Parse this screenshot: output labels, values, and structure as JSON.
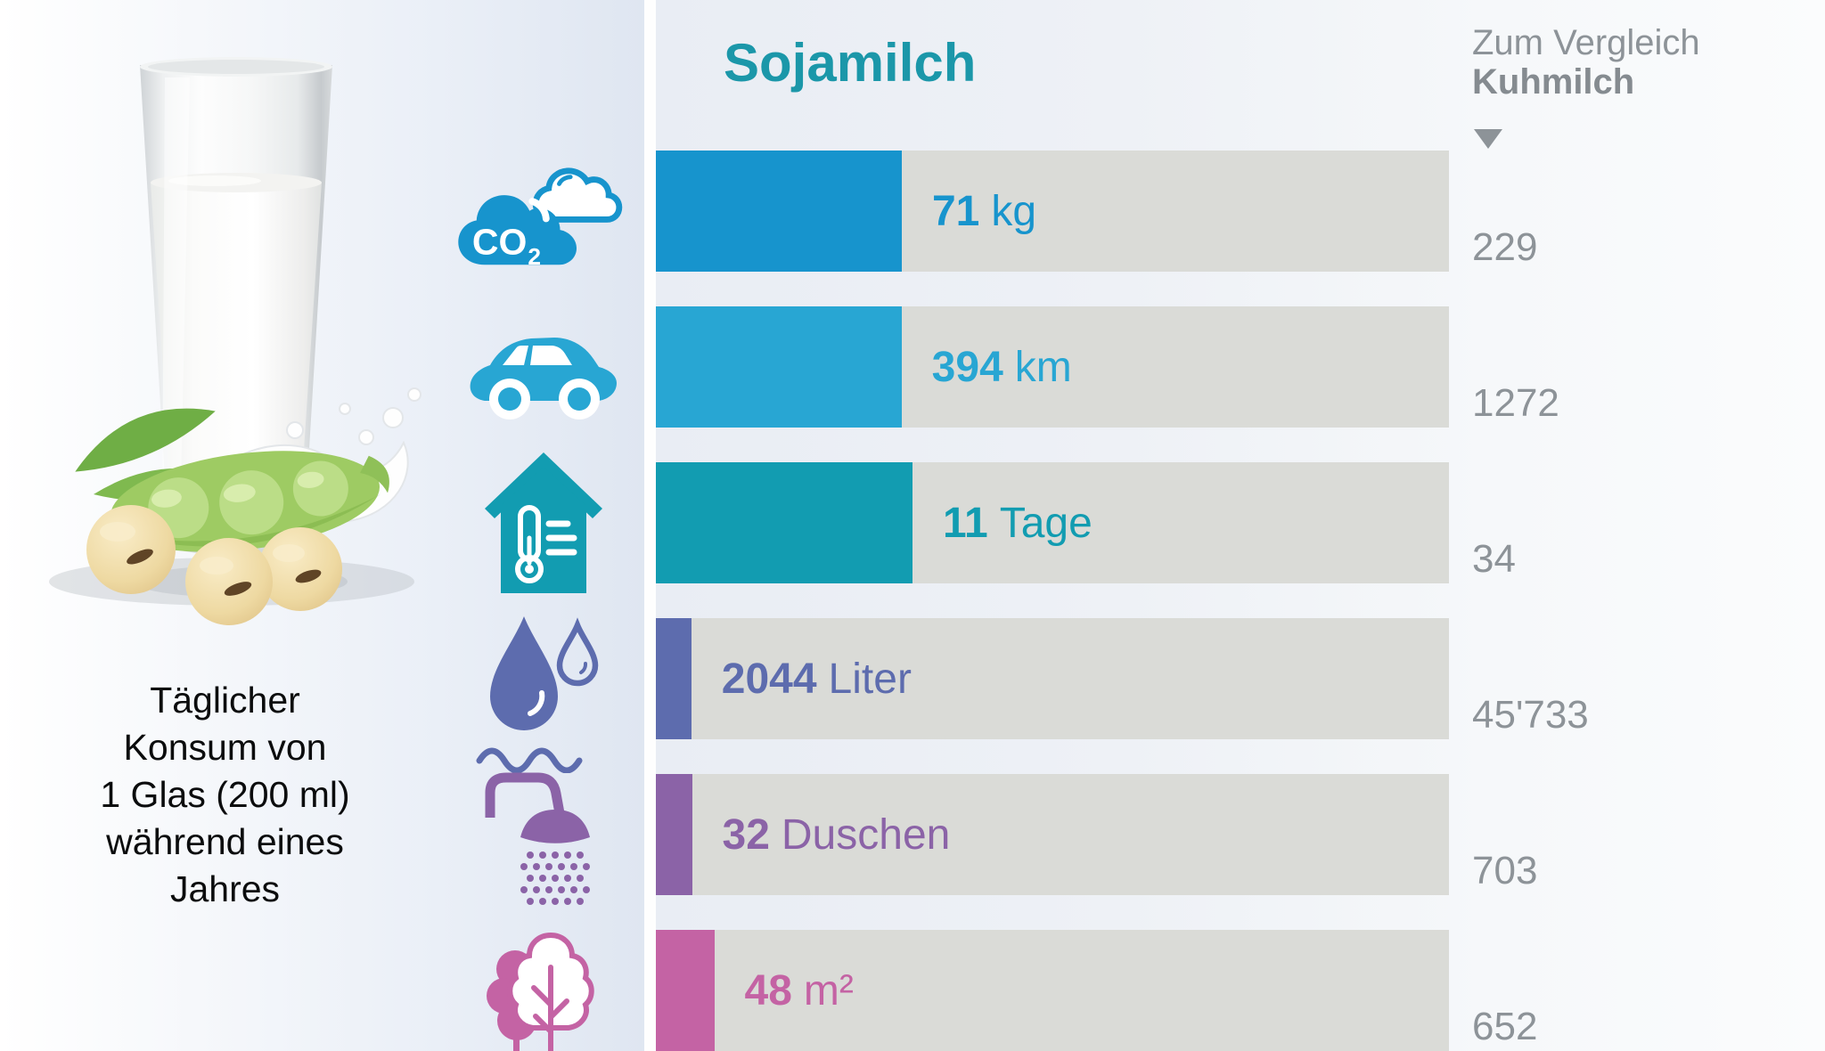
{
  "title": "Sojamilch",
  "comparison": {
    "line1": "Zum Vergleich",
    "line2": "Kuhmilch"
  },
  "caption": {
    "line1": "Täglicher",
    "line2": "Konsum von",
    "line3": "1 Glas (200 ml)",
    "line4": "während eines",
    "line5": "Jahres"
  },
  "colors": {
    "title_teal": "#1b97a9",
    "comparison_gray": "#8d9398",
    "bar_track": "#dadbd7",
    "divider": "#fefefe"
  },
  "chart_data": {
    "type": "bar",
    "title": "Sojamilch",
    "comparison_label": "Zum Vergleich Kuhmilch",
    "layout_note": "horizontal bars; gray track = Kuhmilch full value, colored fill = Sojamilch value scaled to Kuhmilch",
    "rows": [
      {
        "icon": "co2-cloud-icon",
        "value": 71,
        "value_display": "71",
        "unit": "kg",
        "compare_value": 229,
        "compare_display": "229",
        "color": "#1794cd"
      },
      {
        "icon": "car-icon",
        "value": 394,
        "value_display": "394",
        "unit": "km",
        "compare_value": 1272,
        "compare_display": "1272",
        "color": "#28a6d3"
      },
      {
        "icon": "house-thermometer-icon",
        "value": 11,
        "value_display": "11",
        "unit": "Tage",
        "compare_value": 34,
        "compare_display": "34",
        "color": "#129cb1"
      },
      {
        "icon": "water-drop-icon",
        "value": 2044,
        "value_display": "2044",
        "unit": "Liter",
        "compare_value": 45733,
        "compare_display": "45'733",
        "color": "#5d6cae"
      },
      {
        "icon": "shower-icon",
        "value": 32,
        "value_display": "32",
        "unit": "Duschen",
        "compare_value": 703,
        "compare_display": "703",
        "color": "#8b63a7"
      },
      {
        "icon": "trees-icon",
        "value": 48,
        "value_display": "48",
        "unit": "m²",
        "compare_value": 652,
        "compare_display": "652",
        "color": "#c463a4"
      }
    ]
  }
}
